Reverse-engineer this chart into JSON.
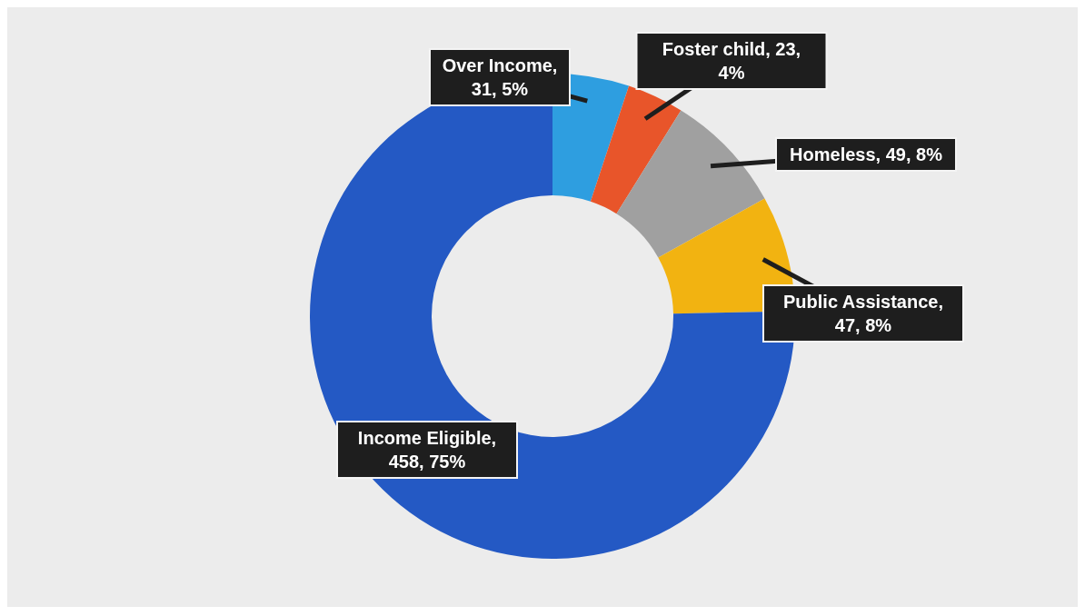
{
  "chart_data": {
    "type": "donut",
    "categories": [
      "Over Income",
      "Foster child",
      "Homeless",
      "Public Assistance",
      "Income Eligible"
    ],
    "values": [
      31,
      23,
      49,
      47,
      458
    ],
    "colors": [
      "#2e9ee0",
      "#e8552a",
      "#a0a0a0",
      "#f2b311",
      "#2459c4"
    ],
    "value_labels": [
      ", 31, 5%",
      ", 23, 4%",
      ", 49, 8%",
      ", 47, 8%",
      ", 458, 75%"
    ],
    "legend": false
  }
}
